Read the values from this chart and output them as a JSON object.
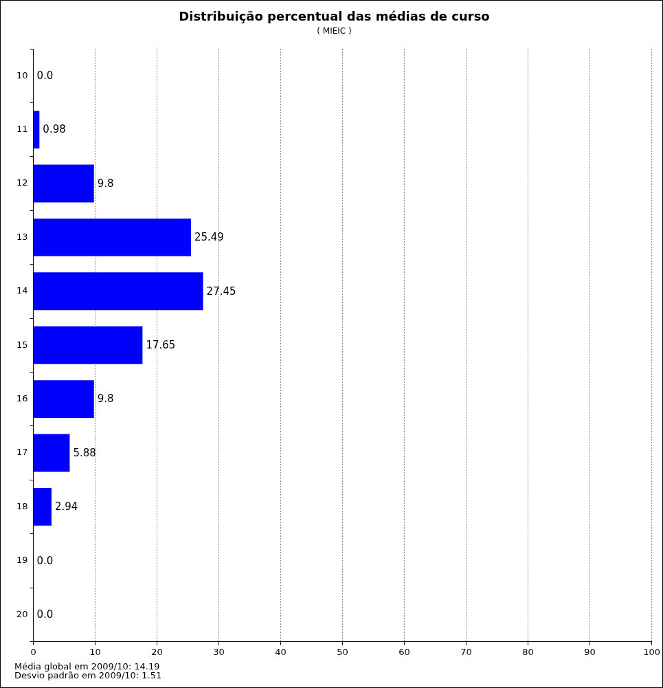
{
  "chart_data": {
    "type": "bar",
    "orientation": "horizontal",
    "title": "Distribuição percentual das médias de curso",
    "subtitle": "( MIEIC )",
    "categories": [
      "10",
      "11",
      "12",
      "13",
      "14",
      "15",
      "16",
      "17",
      "18",
      "19",
      "20"
    ],
    "values": [
      0,
      0.98,
      9.8,
      25.49,
      27.45,
      17.65,
      9.8,
      5.88,
      2.94,
      0,
      0
    ],
    "value_labels": [
      "0.0",
      "0.98",
      "9.8",
      "25.49",
      "27.45",
      "17.65",
      "9.8",
      "5.88",
      "2.94",
      "0.0",
      "0.0"
    ],
    "color": "#0000ff",
    "xlim": [
      0,
      100
    ],
    "xticks": [
      0,
      10,
      20,
      30,
      40,
      50,
      60,
      70,
      80,
      90,
      100
    ],
    "grid": "x",
    "legend": false,
    "annotations": [
      "Média global em 2009/10: 14.19",
      "Desvio padrão em 2009/10: 1.51"
    ]
  }
}
